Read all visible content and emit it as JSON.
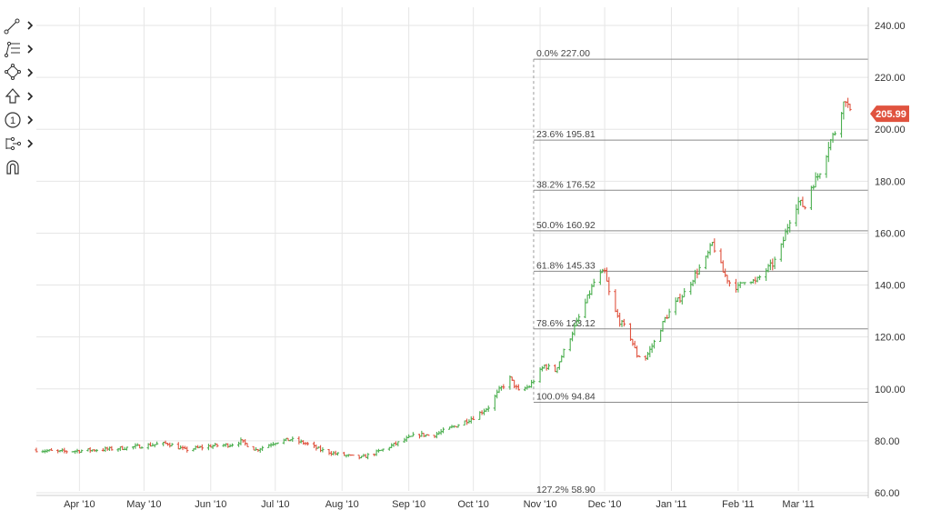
{
  "toolbar": {
    "items": [
      {
        "name": "trend-line-tool",
        "icon": "trend-line-icon"
      },
      {
        "name": "fibonacci-tool",
        "icon": "fibonacci-icon"
      },
      {
        "name": "shapes-tool",
        "icon": "shapes-icon"
      },
      {
        "name": "arrow-tool",
        "icon": "arrow-up-icon"
      },
      {
        "name": "annotation-tool",
        "icon": "numbered-marker-icon"
      },
      {
        "name": "pattern-tool",
        "icon": "pattern-icon"
      },
      {
        "name": "magnet-tool",
        "icon": "magnet-icon"
      }
    ],
    "marker_number": "1"
  },
  "colors": {
    "up": "#4caf50",
    "down": "#e0533f",
    "grid": "#e6e6e6",
    "fib_line": "#8a8a8a",
    "price_tag": "#e0533f"
  },
  "chart_data": {
    "type": "ohlc",
    "x_ticks": [
      "Apr '10",
      "May '10",
      "Jun '10",
      "Jul '10",
      "Aug '10",
      "Sep '10",
      "Oct '10",
      "Nov '10",
      "Dec '10",
      "Jan '11",
      "Feb '11",
      "Mar '11"
    ],
    "y_ticks": [
      "60.00",
      "80.00",
      "100.00",
      "120.00",
      "140.00",
      "160.00",
      "180.00",
      "200.00",
      "220.00",
      "240.00"
    ],
    "ylim": [
      60,
      240
    ],
    "xlim": [
      "2010-03-12",
      "2011-03-25"
    ],
    "grid": true,
    "last_price": "205.99",
    "fibonacci": {
      "start": {
        "date": "2010-10-29",
        "price": 94.84
      },
      "end": {
        "date": "2011-03-08",
        "price": 227.0
      },
      "levels": [
        {
          "label": "0.0% 227.00",
          "ratio": 0.0,
          "price": 227.0
        },
        {
          "label": "23.6% 195.81",
          "ratio": 0.236,
          "price": 195.81
        },
        {
          "label": "38.2% 176.52",
          "ratio": 0.382,
          "price": 176.52
        },
        {
          "label": "50.0% 160.92",
          "ratio": 0.5,
          "price": 160.92
        },
        {
          "label": "61.8% 145.33",
          "ratio": 0.618,
          "price": 145.33
        },
        {
          "label": "78.6% 123.12",
          "ratio": 0.786,
          "price": 123.12
        },
        {
          "label": "100.0% 94.84",
          "ratio": 1.0,
          "price": 94.84
        },
        {
          "label": "127.2% 58.90",
          "ratio": 1.272,
          "price": 58.9
        }
      ]
    },
    "close_path": [
      [
        "2010-03-12",
        76.5
      ],
      [
        "2010-03-22",
        75.8
      ],
      [
        "2010-04-01",
        76.2
      ],
      [
        "2010-04-15",
        76.8
      ],
      [
        "2010-04-25",
        77.5
      ],
      [
        "2010-05-05",
        78.5
      ],
      [
        "2010-05-12",
        79.0
      ],
      [
        "2010-05-20",
        76.5
      ],
      [
        "2010-06-01",
        78.0
      ],
      [
        "2010-06-10",
        78.5
      ],
      [
        "2010-06-15",
        79.8
      ],
      [
        "2010-06-22",
        76.5
      ],
      [
        "2010-07-01",
        79.5
      ],
      [
        "2010-07-08",
        80.5
      ],
      [
        "2010-07-15",
        79.0
      ],
      [
        "2010-07-22",
        76.5
      ],
      [
        "2010-07-29",
        75.0
      ],
      [
        "2010-08-05",
        74.0
      ],
      [
        "2010-08-10",
        73.5
      ],
      [
        "2010-08-17",
        75.5
      ],
      [
        "2010-08-25",
        78.5
      ],
      [
        "2010-09-05",
        82.5
      ],
      [
        "2010-09-12",
        82.0
      ],
      [
        "2010-09-22",
        85.5
      ],
      [
        "2010-10-01",
        89.0
      ],
      [
        "2010-10-08",
        93.0
      ],
      [
        "2010-10-13",
        99.5
      ],
      [
        "2010-10-18",
        104.0
      ],
      [
        "2010-10-22",
        99.0
      ],
      [
        "2010-10-27",
        101.0
      ],
      [
        "2010-11-03",
        109.0
      ],
      [
        "2010-11-08",
        107.0
      ],
      [
        "2010-11-15",
        120.0
      ],
      [
        "2010-11-22",
        133.0
      ],
      [
        "2010-11-27",
        143.0
      ],
      [
        "2010-12-01",
        145.0
      ],
      [
        "2010-12-04",
        133.0
      ],
      [
        "2010-12-08",
        126.0
      ],
      [
        "2010-12-12",
        122.0
      ],
      [
        "2010-12-16",
        113.0
      ],
      [
        "2010-12-20",
        112.0
      ],
      [
        "2010-12-24",
        118.0
      ],
      [
        "2010-12-29",
        127.0
      ],
      [
        "2011-01-03",
        133.0
      ],
      [
        "2011-01-07",
        137.0
      ],
      [
        "2011-01-12",
        144.0
      ],
      [
        "2011-01-17",
        150.0
      ],
      [
        "2011-01-20",
        156.0
      ],
      [
        "2011-01-22",
        152.0
      ],
      [
        "2011-01-25",
        145.0
      ],
      [
        "2011-01-28",
        141.0
      ],
      [
        "2011-02-01",
        139.0
      ],
      [
        "2011-02-05",
        143.0
      ],
      [
        "2011-02-09",
        141.0
      ],
      [
        "2011-02-13",
        145.0
      ],
      [
        "2011-02-17",
        148.0
      ],
      [
        "2011-02-20",
        152.0
      ],
      [
        "2011-02-23",
        160.0
      ],
      [
        "2011-02-26",
        168.0
      ],
      [
        "2011-03-01",
        172.0
      ],
      [
        "2011-03-04",
        170.0
      ],
      [
        "2011-03-07",
        178.0
      ],
      [
        "2011-03-10",
        182.0
      ],
      [
        "2011-03-13",
        188.0
      ],
      [
        "2011-03-15",
        194.0
      ],
      [
        "2011-03-18",
        199.0
      ],
      [
        "2011-03-20",
        205.0
      ],
      [
        "2011-03-21",
        208.0
      ],
      [
        "2011-03-23",
        212.0
      ],
      [
        "2011-03-25",
        205.99
      ]
    ]
  }
}
